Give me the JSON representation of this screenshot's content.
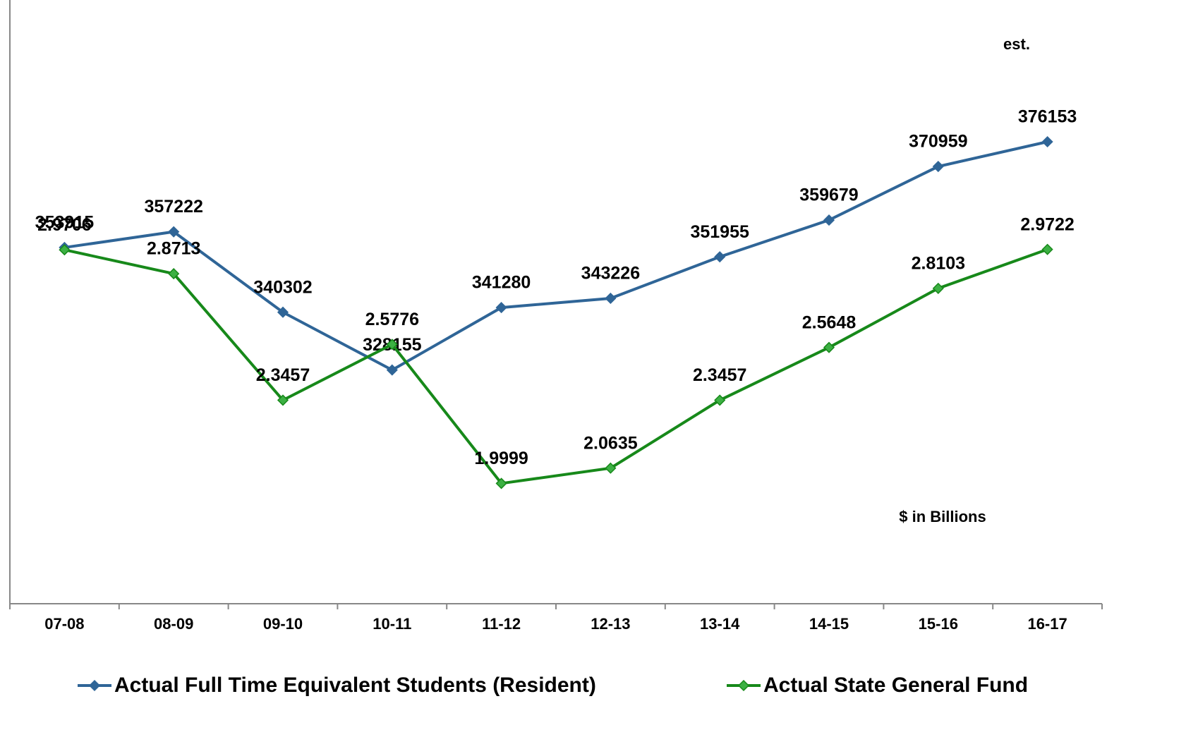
{
  "chart_data": {
    "type": "line",
    "categories": [
      "07-08",
      "08-09",
      "09-10",
      "10-11",
      "11-12",
      "12-13",
      "13-14",
      "14-15",
      "15-16",
      "16-17"
    ],
    "series": [
      {
        "name": "Actual Full Time Equivalent Students (Resident)",
        "color": "#2f6597",
        "values": [
          353915,
          357222,
          340302,
          328155,
          341280,
          343226,
          351955,
          359679,
          370959,
          376153
        ]
      },
      {
        "name": "Actual State General Fund",
        "color": "#17891a",
        "axis": "y2",
        "values": [
          2.9706,
          2.8713,
          2.3457,
          2.5776,
          1.9999,
          2.0635,
          2.3457,
          2.5648,
          2.8103,
          2.9722
        ]
      }
    ],
    "ylim": [
      279000,
      403000
    ],
    "y2lim": [
      1.5,
      3.95
    ],
    "annotations": [
      "est.",
      "$ in Billions"
    ]
  }
}
